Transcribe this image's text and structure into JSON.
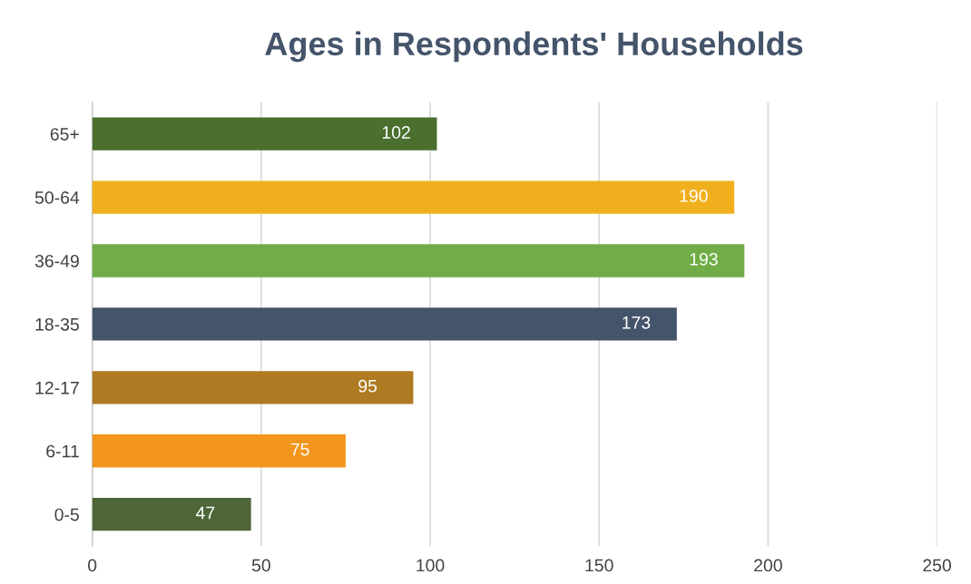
{
  "chart_data": {
    "type": "bar",
    "orientation": "horizontal",
    "title": "Ages in Respondents' Households",
    "categories": [
      "65+",
      "50-64",
      "36-49",
      "18-35",
      "12-17",
      "6-11",
      "0-5"
    ],
    "values": [
      102,
      190,
      193,
      173,
      95,
      75,
      47
    ],
    "colors": [
      "#4a6f2e",
      "#f0b01e",
      "#70ad47",
      "#44546a",
      "#ae7a22",
      "#f2961e",
      "#4d6537"
    ],
    "xlim": [
      0,
      250
    ],
    "xticks": [
      0,
      50,
      100,
      150,
      200,
      250
    ],
    "grid": "x",
    "data_labels": true
  }
}
